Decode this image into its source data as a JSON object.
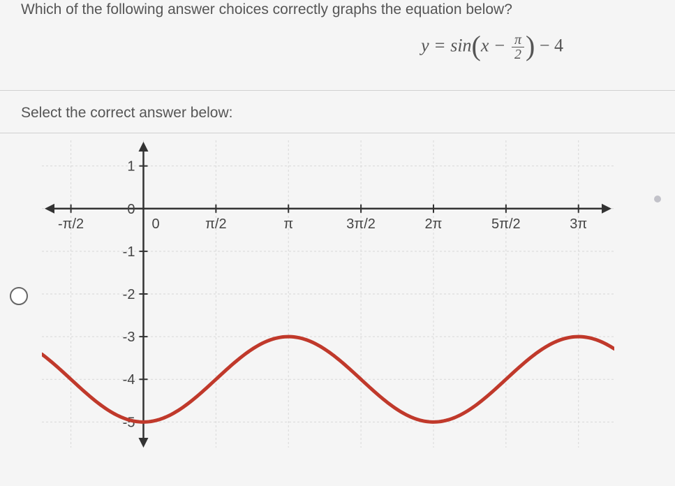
{
  "question": {
    "prompt": "Which of the following answer choices correctly graphs the equation below?",
    "equation": {
      "prefix": "y = sin",
      "lparen": "(",
      "inner_left": "x − ",
      "frac_num": "π",
      "frac_den": "2",
      "rparen": ")",
      "suffix": " − 4"
    },
    "instruction": "Select the correct answer below:"
  },
  "graph": {
    "type": "line",
    "colors": {
      "curve": "#c0392b",
      "axis": "#333333",
      "grid": "#d8d8d8",
      "tick_label": "#444444",
      "background": "#f5f5f5"
    },
    "x": {
      "min": -2.2,
      "max": 10.2,
      "ticks": [
        -1.5708,
        0,
        1.5708,
        3.1416,
        4.7124,
        6.2832,
        7.854,
        9.4248
      ],
      "tick_labels": [
        "-π/2",
        "0",
        "π/2",
        "π",
        "3π/2",
        "2π",
        "5π/2",
        "3π"
      ]
    },
    "y": {
      "min": -5.6,
      "max": 1.6,
      "ticks": [
        1,
        0,
        -1,
        -2,
        -3,
        -4,
        -5
      ],
      "tick_labels": [
        "1",
        "0",
        "-1",
        "-2",
        "-3",
        "-4",
        "-5"
      ]
    },
    "function": {
      "description": "sin(x - pi/2) - 4",
      "amplitude": 1,
      "phase_shift": 1.5708,
      "vertical_shift": -4,
      "period": 6.2832
    },
    "line_width": 5,
    "grid_dash": "3,3"
  }
}
